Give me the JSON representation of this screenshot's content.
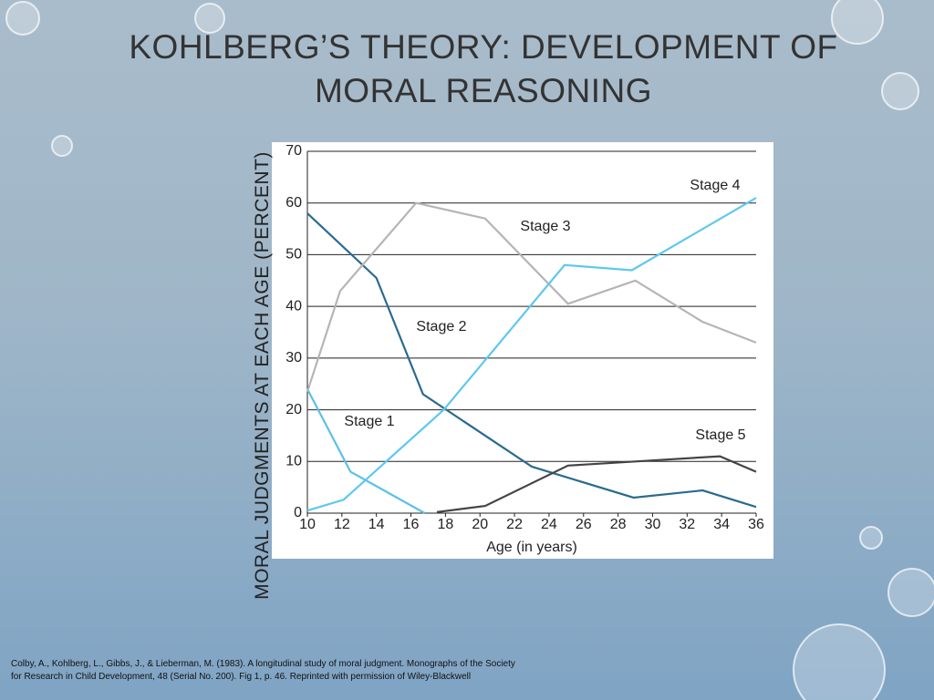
{
  "chart_data": {
    "type": "line",
    "title": "KOHLBERG’S THEORY: DEVELOPMENT OF MORAL REASONING",
    "y_label": "MORAL JUDGMENTS AT EACH AGE (PERCENT)",
    "x_label": "Age (in years)",
    "note": "Colby, A., Kohlberg, L., Gibbs, J., & Lieberman, M. (1983). A longitudinal study of moral judgment. Monographs of the Society for Research in Child Development, 48 (Serial No. 200). Fig 1, p. 46. Reprinted with permission of Wiley-Blackwell",
    "xlim": [
      10,
      36
    ],
    "xticks": [
      10,
      12,
      14,
      16,
      18,
      20,
      22,
      24,
      26,
      28,
      30,
      32,
      34,
      36
    ],
    "ylim": [
      0,
      70
    ],
    "yticks": [
      0,
      10,
      20,
      30,
      40,
      50,
      60,
      70
    ],
    "grid": true,
    "series": [
      {
        "name": "Stage 1",
        "color": "#5bc0e8",
        "x": [
          10,
          12.5,
          16.8
        ],
        "values": [
          24,
          8,
          0
        ]
      },
      {
        "name": "Stage 2",
        "color": "#2a6b8f",
        "x": [
          10,
          14,
          16.7,
          23,
          28.9,
          32.9,
          36
        ],
        "values": [
          58,
          45.5,
          23,
          9,
          3,
          4.4,
          1.2
        ]
      },
      {
        "name": "Stage 3",
        "color": "#b5b5b5",
        "x": [
          10,
          11.9,
          16.3,
          20.3,
          25.1,
          29,
          32.9,
          36
        ],
        "values": [
          23.5,
          43,
          60,
          57,
          40.5,
          45,
          37,
          33
        ]
      },
      {
        "name": "Stage 4",
        "color": "#5ec8ee",
        "x": [
          10,
          12.1,
          17.9,
          24.9,
          28.8,
          36
        ],
        "values": [
          0.5,
          2.6,
          20,
          48,
          47,
          61
        ]
      },
      {
        "name": "Stage 5",
        "color": "#444444",
        "x": [
          17.5,
          20.3,
          25.1,
          29,
          33.9,
          36
        ],
        "values": [
          0.2,
          1.4,
          9.2,
          10,
          11,
          8
        ]
      }
    ]
  }
}
